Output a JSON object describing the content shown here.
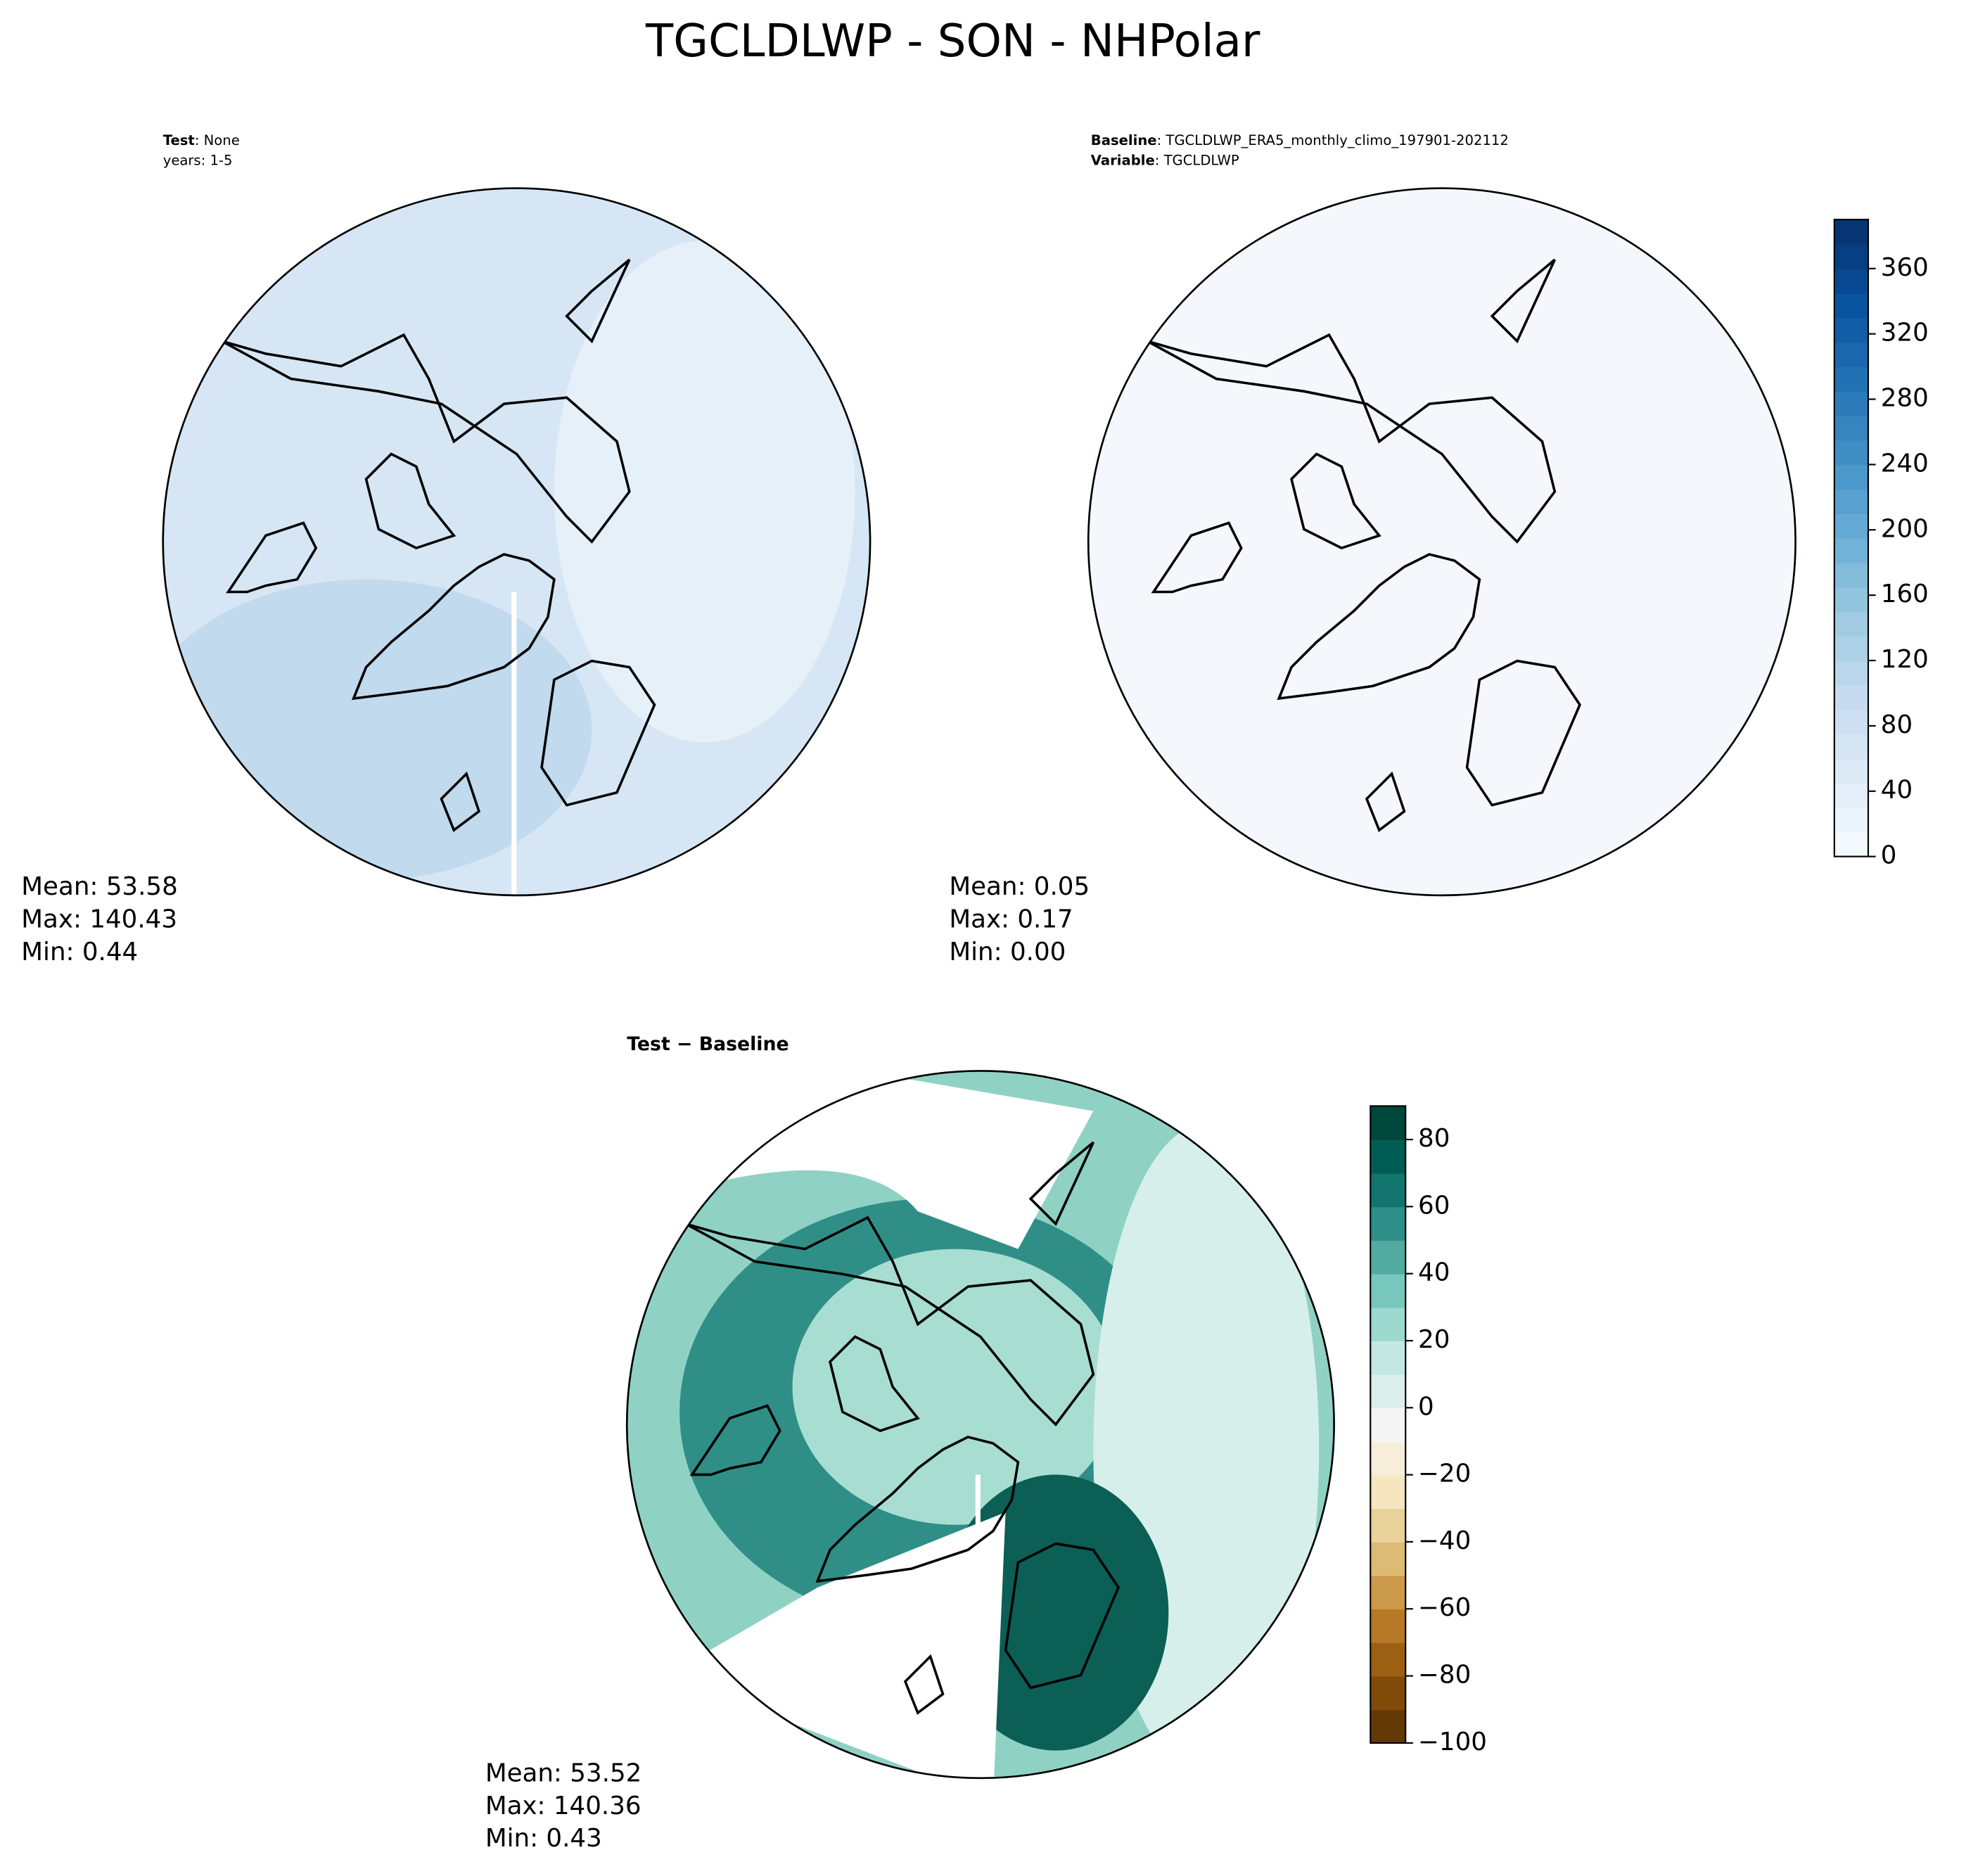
{
  "title": "TGCLDLWP - SON - NHPolar",
  "chart_data": [
    {
      "type": "map",
      "fill": "#d6e6f4",
      "labels": [
        {
          "bold": "Test",
          "text": ": None"
        },
        {
          "text": "years: 1-5"
        }
      ],
      "stats": [
        "Mean: 53.58",
        "Max: 140.43",
        "Min:  0.44"
      ]
    },
    {
      "type": "map",
      "fill": "#f4f8fd",
      "labels": [
        {
          "bold": "Baseline",
          "text": ": TGCLDLWP_ERA5_monthly_climo_197901-202112"
        },
        {
          "bold": "Variable",
          "text": ": TGCLDLWP"
        }
      ],
      "stats": [
        "Mean:  0.05",
        "Max:  0.17",
        "Min:  0.00"
      ],
      "ylim": [
        0,
        390
      ],
      "yticks": [
        0,
        40,
        80,
        120,
        160,
        200,
        240,
        280,
        320,
        360
      ],
      "colormap": [
        "#f7fbff",
        "#deebf7",
        "#c6dbef",
        "#9ecae1",
        "#6baed6",
        "#4292c6",
        "#2171b5",
        "#08519c",
        "#08306b"
      ]
    },
    {
      "type": "map",
      "fill": "#8fd2c4",
      "labels": [
        {
          "bold": "Test − Baseline"
        }
      ],
      "stats": [
        "Mean: 53.52",
        "Max: 140.36",
        "Min:  0.43"
      ],
      "ylim": [
        -100,
        90
      ],
      "yticks": [
        {
          "value": -100,
          "label": "−100"
        },
        {
          "value": -80,
          "label": "−80"
        },
        {
          "value": -60,
          "label": "−60"
        },
        {
          "value": -40,
          "label": "−40"
        },
        {
          "value": -20,
          "label": "−20"
        },
        0,
        20,
        40,
        60,
        80
      ],
      "colormap": [
        "#543005",
        "#8c510a",
        "#bf812d",
        "#dfc27d",
        "#f6e8c3",
        "#f5f5f5",
        "#c7eae5",
        "#80cdc1",
        "#35978f",
        "#01665e",
        "#003c30"
      ]
    }
  ]
}
